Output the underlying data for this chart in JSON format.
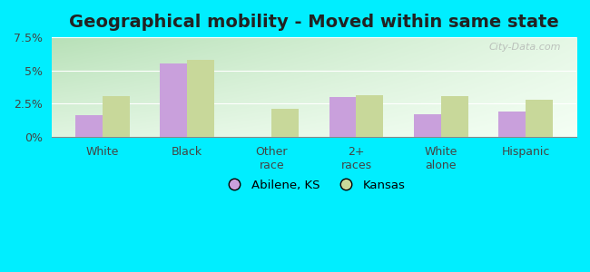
{
  "title": "Geographical mobility - Moved within same state",
  "categories": [
    "White",
    "Black",
    "Other\nrace",
    "2+\nraces",
    "White\nalone",
    "Hispanic"
  ],
  "abilene_values": [
    1.6,
    5.5,
    0.0,
    3.0,
    1.7,
    1.9
  ],
  "kansas_values": [
    3.1,
    5.8,
    2.1,
    3.15,
    3.05,
    2.8
  ],
  "abilene_color": "#c9a0dc",
  "kansas_color": "#c8d89a",
  "bg_color_top_left": "#b8ddb0",
  "bg_color_right": "#e8f8e8",
  "bg_color_bottom": "#f0fdf0",
  "outer_bg": "#00eeff",
  "ylim": [
    0,
    7.5
  ],
  "yticks": [
    0,
    2.5,
    5.0,
    7.5
  ],
  "ytick_labels": [
    "0%",
    "2.5%",
    "5%",
    "7.5%"
  ],
  "legend_abilene": "Abilene, KS",
  "legend_kansas": "Kansas",
  "bar_width": 0.32,
  "title_fontsize": 14,
  "tick_fontsize": 9,
  "watermark": "City-Data.com"
}
